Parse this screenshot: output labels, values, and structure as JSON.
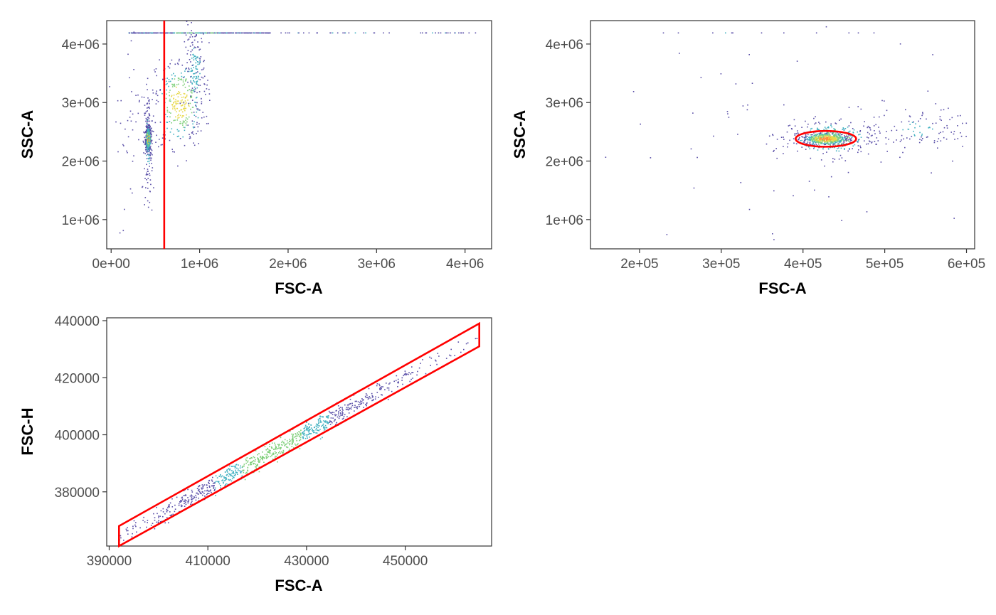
{
  "chart_data": [
    {
      "type": "scatter",
      "panel": "top-left",
      "xlabel": "FSC-A",
      "ylabel": "SSC-A",
      "xlim": [
        -50000,
        4300000
      ],
      "ylim": [
        500000,
        4400000
      ],
      "x_ticks": [
        0,
        1000000,
        2000000,
        3000000,
        4000000
      ],
      "x_tick_labels": [
        "0e+00",
        "1e+06",
        "2e+06",
        "3e+06",
        "4e+06"
      ],
      "y_ticks": [
        1000000,
        2000000,
        3000000,
        4000000
      ],
      "y_tick_labels": [
        "1e+06",
        "2e+06",
        "3e+06",
        "4e+06"
      ],
      "grid": false,
      "gate": {
        "shape": "vertical-line",
        "x": 600000,
        "color": "#ff0000"
      },
      "populations": [
        {
          "cx": 420000,
          "cy": 2380000,
          "sx": 15000,
          "sy": 100000,
          "n": 500
        },
        {
          "cx": 420000,
          "cy": 2300000,
          "sx": 25000,
          "sy": 450000,
          "n": 140
        },
        {
          "cx": 780000,
          "cy": 3000000,
          "sx": 140000,
          "sy": 380000,
          "n": 320
        },
        {
          "cx": 950000,
          "cy": 3600000,
          "sx": 60000,
          "sy": 350000,
          "n": 140
        },
        {
          "cx": 300000,
          "cy": 2400000,
          "sx": 180000,
          "sy": 750000,
          "n": 60
        }
      ],
      "saturated_row": {
        "y": 4190000,
        "x_min": 200000,
        "x_max": 1800000,
        "sparse_x_max": 4200000,
        "n": 420
      }
    },
    {
      "type": "scatter",
      "panel": "top-right",
      "xlabel": "FSC-A",
      "ylabel": "SSC-A",
      "xlim": [
        140000,
        610000
      ],
      "ylim": [
        500000,
        4400000
      ],
      "x_ticks": [
        200000,
        300000,
        400000,
        500000,
        600000
      ],
      "x_tick_labels": [
        "2e+05",
        "3e+05",
        "4e+05",
        "5e+05",
        "6e+05"
      ],
      "y_ticks": [
        1000000,
        2000000,
        3000000,
        4000000
      ],
      "y_tick_labels": [
        "1e+06",
        "2e+06",
        "3e+06",
        "4e+06"
      ],
      "grid": false,
      "gate": {
        "shape": "ellipse",
        "cx": 428000,
        "cy": 2380000,
        "rx": 37000,
        "ry": 135000,
        "color": "#ff0000"
      },
      "populations": [
        {
          "cx": 428000,
          "cy": 2380000,
          "sx": 14000,
          "sy": 55000,
          "n": 550
        },
        {
          "cx": 432000,
          "cy": 2390000,
          "sx": 28000,
          "sy": 160000,
          "n": 250
        },
        {
          "cx": 540000,
          "cy": 2550000,
          "sx": 35000,
          "sy": 180000,
          "n": 110
        },
        {
          "cx": 400000,
          "cy": 2500000,
          "sx": 110000,
          "sy": 900000,
          "n": 70
        }
      ],
      "saturated_row": {
        "y": 4190000,
        "x_min": 160000,
        "x_max": 540000,
        "sparse_x_max": 540000,
        "n": 12
      }
    },
    {
      "type": "scatter",
      "panel": "bottom-left",
      "xlabel": "FSC-A",
      "ylabel": "FSC-H",
      "xlim": [
        389500,
        467500
      ],
      "ylim": [
        361000,
        441000
      ],
      "x_ticks": [
        390000,
        410000,
        430000,
        450000
      ],
      "x_tick_labels": [
        "390000",
        "410000",
        "430000",
        "450000"
      ],
      "y_ticks": [
        380000,
        400000,
        420000,
        440000
      ],
      "y_tick_labels": [
        "380000",
        "400000",
        "420000",
        "440000"
      ],
      "grid": false,
      "gate": {
        "shape": "polygon",
        "color": "#ff0000",
        "vertices": [
          [
            392000,
            368000
          ],
          [
            465000,
            439000
          ],
          [
            465000,
            431000
          ],
          [
            392000,
            360000
          ]
        ]
      },
      "diagonal_population": {
        "x_min": 392000,
        "x_max": 465000,
        "slope": 0.973,
        "intercept": -17600,
        "spread": 1600,
        "n": 900,
        "dense_center": 423000
      }
    }
  ]
}
